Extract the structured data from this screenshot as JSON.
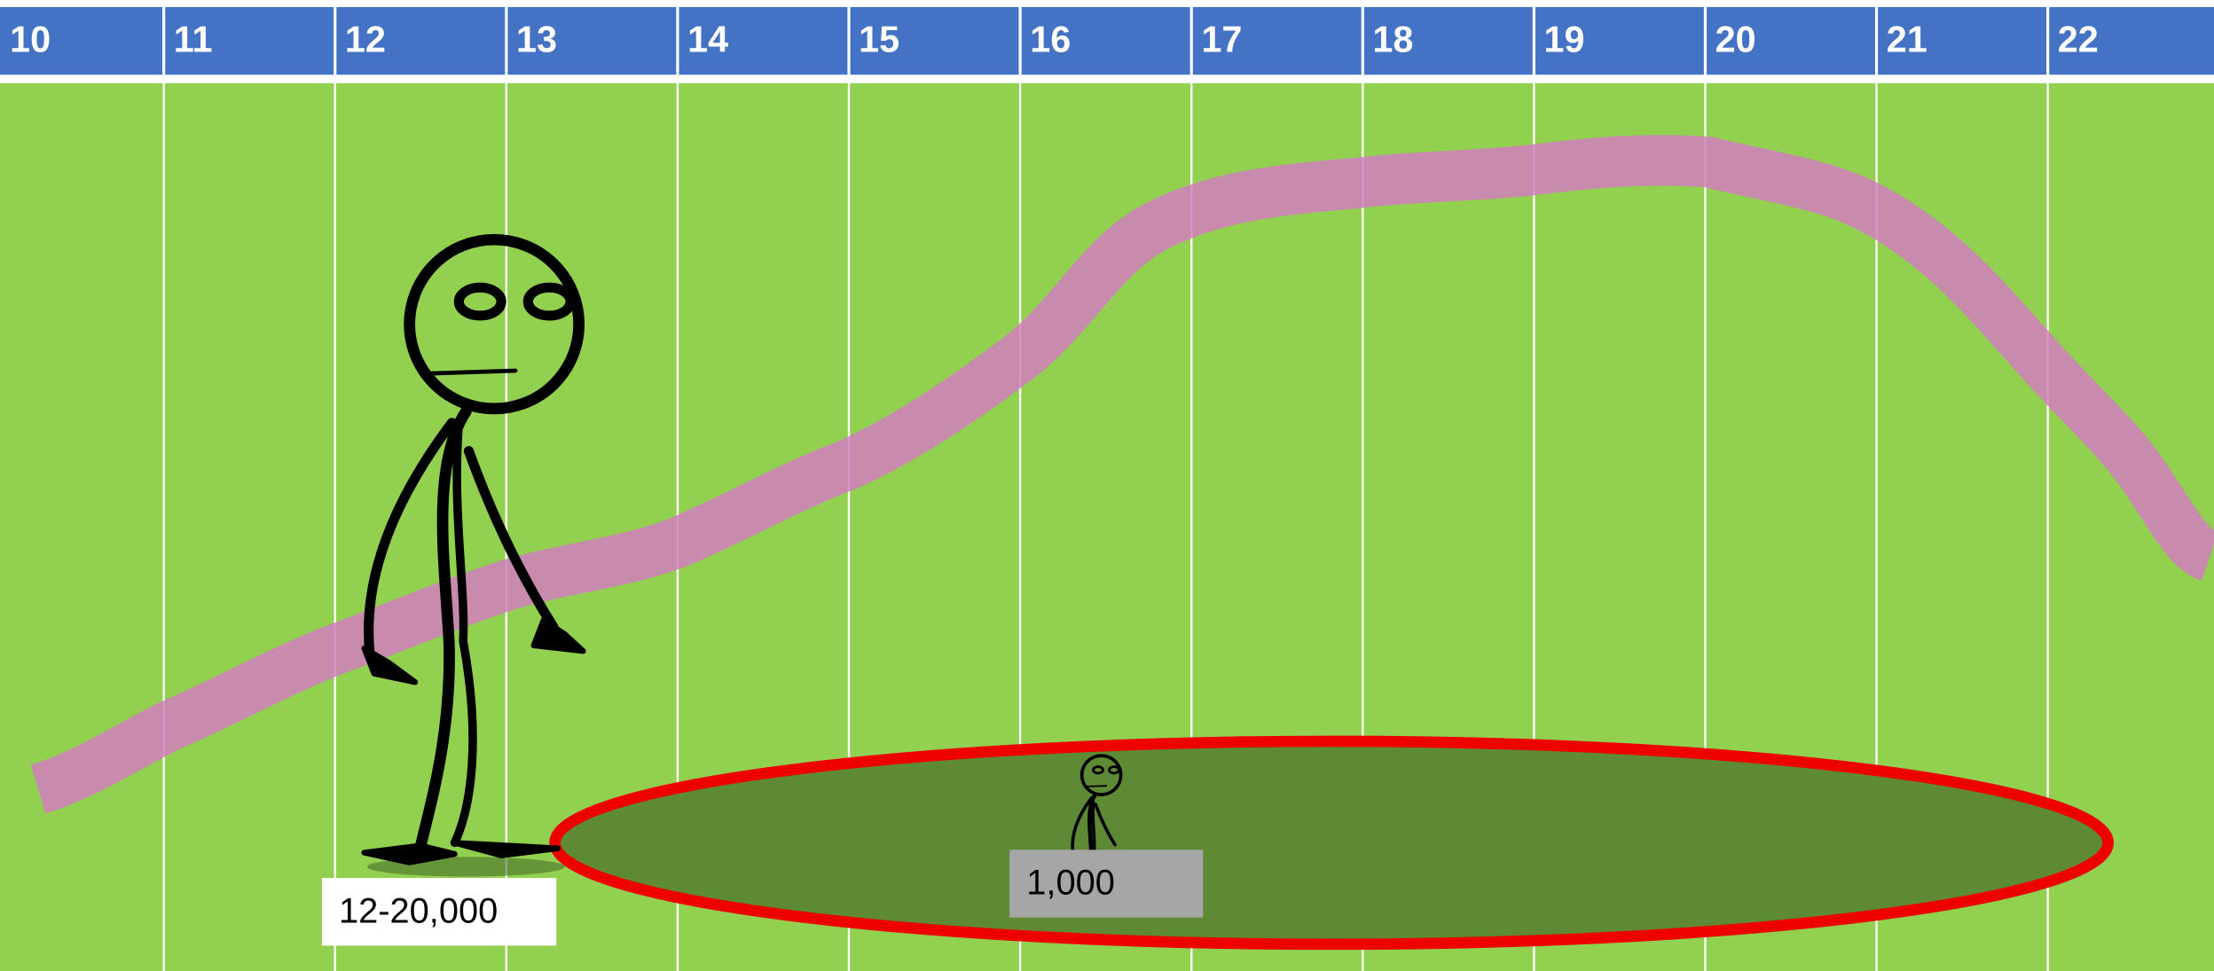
{
  "header": {
    "columns": [
      "10",
      "11",
      "12",
      "13",
      "14",
      "15",
      "16",
      "17",
      "18",
      "19",
      "20",
      "21",
      "22"
    ]
  },
  "labels": {
    "large_group": "12-20,000",
    "small_group": "1,000"
  }
}
